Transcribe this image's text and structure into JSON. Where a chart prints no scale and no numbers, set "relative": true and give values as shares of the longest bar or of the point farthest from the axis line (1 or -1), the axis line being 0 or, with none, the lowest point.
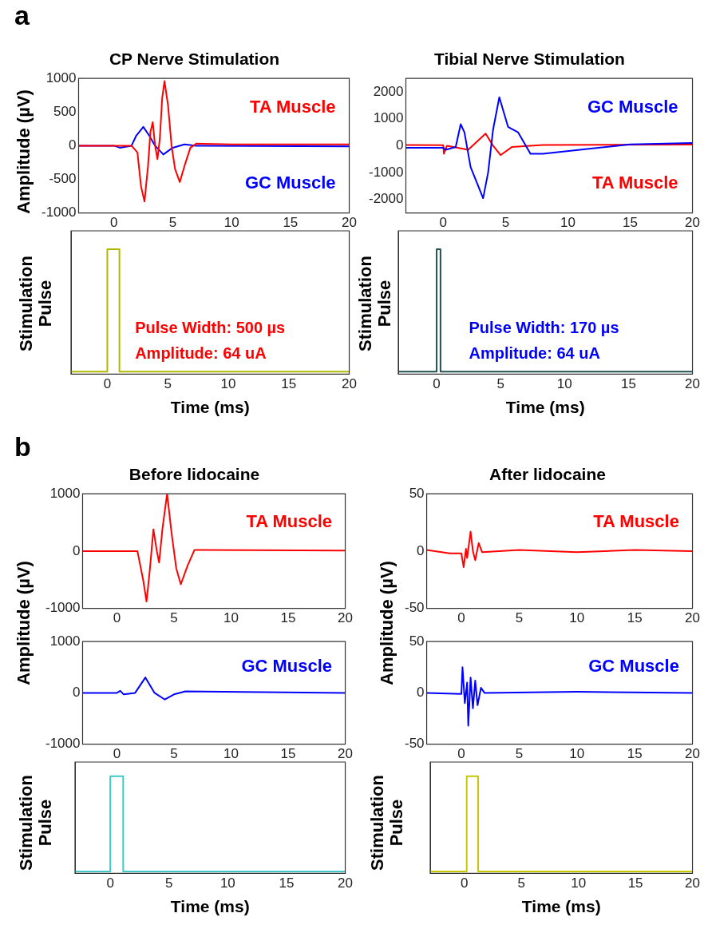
{
  "chart_data": [
    {
      "type": "line",
      "title": "CP Nerve Stimulation",
      "ylabel": "Amplitude (µV)",
      "annotations": [
        "a"
      ],
      "xlim": [
        -3,
        20
      ],
      "xticks": [
        0,
        5,
        10,
        15,
        20
      ],
      "ylim": [
        -1000,
        1000
      ],
      "yticks": [
        -1000,
        -500,
        0,
        500,
        1000
      ],
      "series": [
        {
          "name": "TA Muscle",
          "color": "#ff0000",
          "x": [
            -3,
            0,
            1.5,
            2,
            2.3,
            2.6,
            2.9,
            3.1,
            3.3,
            3.5,
            3.7,
            3.9,
            4.1,
            4.3,
            4.6,
            4.9,
            5.2,
            5.6,
            6,
            6.5,
            7,
            10,
            15,
            20
          ],
          "values": [
            0,
            0,
            0,
            -100,
            -600,
            -830,
            -300,
            200,
            350,
            0,
            -200,
            100,
            700,
            960,
            600,
            0,
            -350,
            -540,
            -300,
            -30,
            30,
            20,
            20,
            20
          ]
        },
        {
          "name": "GC Muscle",
          "color": "#0000ff",
          "x": [
            -3,
            0,
            0.5,
            1.5,
            1.9,
            2.5,
            3,
            3.5,
            4.2,
            5,
            6,
            7,
            20
          ],
          "values": [
            0,
            0,
            -30,
            0,
            150,
            280,
            150,
            0,
            -130,
            -30,
            20,
            0,
            -10
          ]
        }
      ]
    },
    {
      "type": "line",
      "xlabel": "Time (ms)",
      "ylabel": "Stimulation Pulse",
      "relative": true,
      "annotations": [
        "Pulse Width: 500 µs",
        "Amplitude: 64 uA"
      ],
      "xlim": [
        -3,
        20
      ],
      "xticks": [
        0,
        5,
        10,
        15,
        20
      ],
      "series": [
        {
          "color": "#b0b800",
          "x": [
            -3,
            0,
            0,
            1,
            1,
            20
          ],
          "values": [
            0,
            0,
            1,
            1,
            0,
            0
          ]
        }
      ]
    },
    {
      "type": "line",
      "title": "Tibial Nerve Stimulation",
      "xlim": [
        -3,
        20
      ],
      "xticks": [
        0,
        5,
        10,
        15,
        20
      ],
      "ylim": [
        -2500,
        2500
      ],
      "yticks": [
        -2000,
        -1000,
        0,
        1000,
        2000
      ],
      "series": [
        {
          "name": "GC Muscle",
          "color": "#0000ff",
          "x": [
            -3,
            0,
            0.2,
            1,
            1.4,
            1.7,
            2.2,
            3.2,
            3.6,
            4,
            4.5,
            5.2,
            6,
            7,
            8,
            12,
            15,
            20
          ],
          "values": [
            -80,
            -80,
            -150,
            -50,
            800,
            500,
            -800,
            -1950,
            -1000,
            600,
            1800,
            700,
            500,
            -300,
            -300,
            -100,
            50,
            100
          ]
        },
        {
          "name": "TA Muscle",
          "color": "#ff0000",
          "x": [
            -3,
            0,
            0.05,
            0.3,
            2,
            3.4,
            4,
            4.6,
            5.5,
            8,
            20
          ],
          "values": [
            30,
            20,
            -300,
            0,
            -150,
            450,
            0,
            -350,
            -50,
            30,
            40
          ]
        }
      ]
    },
    {
      "type": "line",
      "xlabel": "Time (ms)",
      "ylabel": "Stimulation Pulse",
      "relative": true,
      "annotations": [
        "Pulse Width: 170 µs",
        "Amplitude: 64 uA"
      ],
      "xlim": [
        -3,
        20
      ],
      "xticks": [
        0,
        5,
        10,
        15,
        20
      ],
      "series": [
        {
          "color": "#205050",
          "x": [
            -3,
            0,
            0,
            0.3,
            0.3,
            20
          ],
          "values": [
            0,
            0,
            1,
            1,
            0,
            0
          ]
        }
      ]
    },
    {
      "type": "line",
      "title": "Before lidocaine",
      "ylabel": "Amplitude (µV)",
      "annotations": [
        "b"
      ],
      "xlim": [
        -3,
        20
      ],
      "xticks": [
        0,
        5,
        10,
        15,
        20
      ],
      "ylim": [
        -1000,
        1000
      ],
      "yticks": [
        -1000,
        0,
        1000
      ],
      "series": [
        {
          "name": "TA Muscle",
          "color": "#ff0000",
          "x": [
            -3,
            0,
            1.8,
            2.3,
            2.6,
            2.9,
            3.2,
            3.5,
            3.7,
            4,
            4.4,
            4.8,
            5.2,
            5.6,
            6.2,
            6.8,
            20
          ],
          "values": [
            0,
            0,
            0,
            -500,
            -880,
            -300,
            380,
            0,
            -200,
            400,
            1000,
            300,
            -300,
            -580,
            -250,
            20,
            10
          ]
        }
      ]
    },
    {
      "type": "line",
      "xlim": [
        -3,
        20
      ],
      "xticks": [
        0,
        5,
        10,
        15,
        20
      ],
      "ylim": [
        -1000,
        1000
      ],
      "yticks": [
        -1000,
        0,
        1000
      ],
      "series": [
        {
          "name": "GC Muscle",
          "color": "#0000ff",
          "x": [
            -3,
            0,
            0.3,
            0.6,
            1.6,
            2.5,
            3.3,
            4.2,
            5,
            6,
            20
          ],
          "values": [
            0,
            0,
            40,
            -30,
            0,
            300,
            0,
            -130,
            -30,
            30,
            0
          ]
        }
      ]
    },
    {
      "type": "line",
      "xlabel": "Time (ms)",
      "ylabel": "Stimulation Pulse",
      "relative": true,
      "xlim": [
        -3,
        20
      ],
      "xticks": [
        0,
        5,
        10,
        15,
        20
      ],
      "series": [
        {
          "color": "#40c8c8",
          "x": [
            -3,
            0,
            0,
            1.1,
            1.1,
            20
          ],
          "values": [
            0,
            0,
            1,
            1,
            0,
            0
          ]
        }
      ]
    },
    {
      "type": "line",
      "title": "After lidocaine",
      "ylabel": "Amplitude (µV)",
      "xlim": [
        -3,
        20
      ],
      "xticks": [
        0,
        5,
        10,
        15,
        20
      ],
      "ylim": [
        -50,
        50
      ],
      "yticks": [
        -50,
        0,
        50
      ],
      "series": [
        {
          "name": "TA Muscle",
          "color": "#ff0000",
          "x": [
            -3,
            -1,
            0,
            0.2,
            0.4,
            0.5,
            0.8,
            1,
            1.2,
            1.5,
            1.8,
            5,
            10,
            15,
            20
          ],
          "values": [
            1,
            -2,
            -2,
            -14,
            2,
            -6,
            17,
            0,
            -8,
            7,
            -1,
            1,
            -1,
            1,
            0
          ]
        }
      ]
    },
    {
      "type": "line",
      "xlim": [
        -3,
        20
      ],
      "xticks": [
        0,
        5,
        10,
        15,
        20
      ],
      "ylim": [
        -50,
        50
      ],
      "yticks": [
        -50,
        0,
        50
      ],
      "series": [
        {
          "name": "GC Muscle",
          "color": "#0000ff",
          "x": [
            -3,
            0,
            0.1,
            0.3,
            0.5,
            0.6,
            0.8,
            1,
            1.2,
            1.4,
            1.7,
            2,
            10,
            20
          ],
          "values": [
            0,
            -1,
            25,
            -10,
            10,
            -32,
            15,
            -15,
            12,
            -12,
            5,
            0,
            1,
            0
          ]
        }
      ]
    },
    {
      "type": "line",
      "xlabel": "Time (ms)",
      "ylabel": "Stimulation Pulse",
      "relative": true,
      "xlim": [
        -3,
        20
      ],
      "xticks": [
        0,
        5,
        10,
        15,
        20
      ],
      "series": [
        {
          "color": "#c8c800",
          "x": [
            -3,
            0.2,
            0.2,
            1.2,
            1.2,
            20
          ],
          "values": [
            0,
            0,
            1,
            1,
            0,
            0
          ]
        }
      ]
    }
  ]
}
